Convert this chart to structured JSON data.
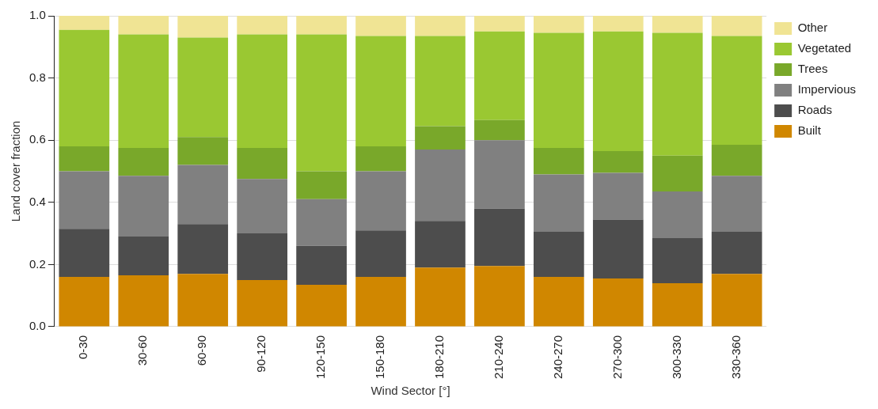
{
  "chart_data": {
    "type": "bar",
    "stacked": true,
    "xlabel": "Wind Sector [°]",
    "ylabel": "Land cover fraction",
    "categories": [
      "0-30",
      "30-60",
      "60-90",
      "90-120",
      "120-150",
      "150-180",
      "180-210",
      "210-240",
      "240-270",
      "270-300",
      "300-330",
      "330-360"
    ],
    "series": [
      {
        "name": "Built",
        "color": "#d08700",
        "values": [
          0.16,
          0.165,
          0.17,
          0.15,
          0.135,
          0.16,
          0.19,
          0.195,
          0.16,
          0.155,
          0.14,
          0.17
        ]
      },
      {
        "name": "Roads",
        "color": "#4d4d4d",
        "values": [
          0.155,
          0.125,
          0.16,
          0.15,
          0.125,
          0.15,
          0.15,
          0.185,
          0.145,
          0.19,
          0.145,
          0.135
        ]
      },
      {
        "name": "Impervious",
        "color": "#808080",
        "values": [
          0.185,
          0.195,
          0.19,
          0.175,
          0.15,
          0.19,
          0.23,
          0.22,
          0.185,
          0.15,
          0.15,
          0.18
        ]
      },
      {
        "name": "Trees",
        "color": "#79a82a",
        "values": [
          0.08,
          0.09,
          0.09,
          0.1,
          0.09,
          0.08,
          0.075,
          0.065,
          0.085,
          0.07,
          0.115,
          0.1
        ]
      },
      {
        "name": "Vegetated",
        "color": "#9ac832",
        "values": [
          0.375,
          0.365,
          0.32,
          0.365,
          0.44,
          0.355,
          0.29,
          0.285,
          0.37,
          0.385,
          0.395,
          0.35
        ]
      },
      {
        "name": "Other",
        "color": "#f0e494",
        "values": [
          0.045,
          0.06,
          0.07,
          0.06,
          0.06,
          0.065,
          0.065,
          0.05,
          0.055,
          0.05,
          0.055,
          0.065
        ]
      }
    ],
    "ylim": [
      0,
      1
    ],
    "yticks": [
      {
        "value": 0,
        "label": "0.0"
      },
      {
        "value": 0.2,
        "label": "0.2"
      },
      {
        "value": 0.4,
        "label": "0.4"
      },
      {
        "value": 0.6,
        "label": "0.6"
      },
      {
        "value": 0.8,
        "label": "0.8"
      },
      {
        "value": 1,
        "label": "1.0"
      }
    ],
    "grid": "y",
    "legend": "right"
  }
}
